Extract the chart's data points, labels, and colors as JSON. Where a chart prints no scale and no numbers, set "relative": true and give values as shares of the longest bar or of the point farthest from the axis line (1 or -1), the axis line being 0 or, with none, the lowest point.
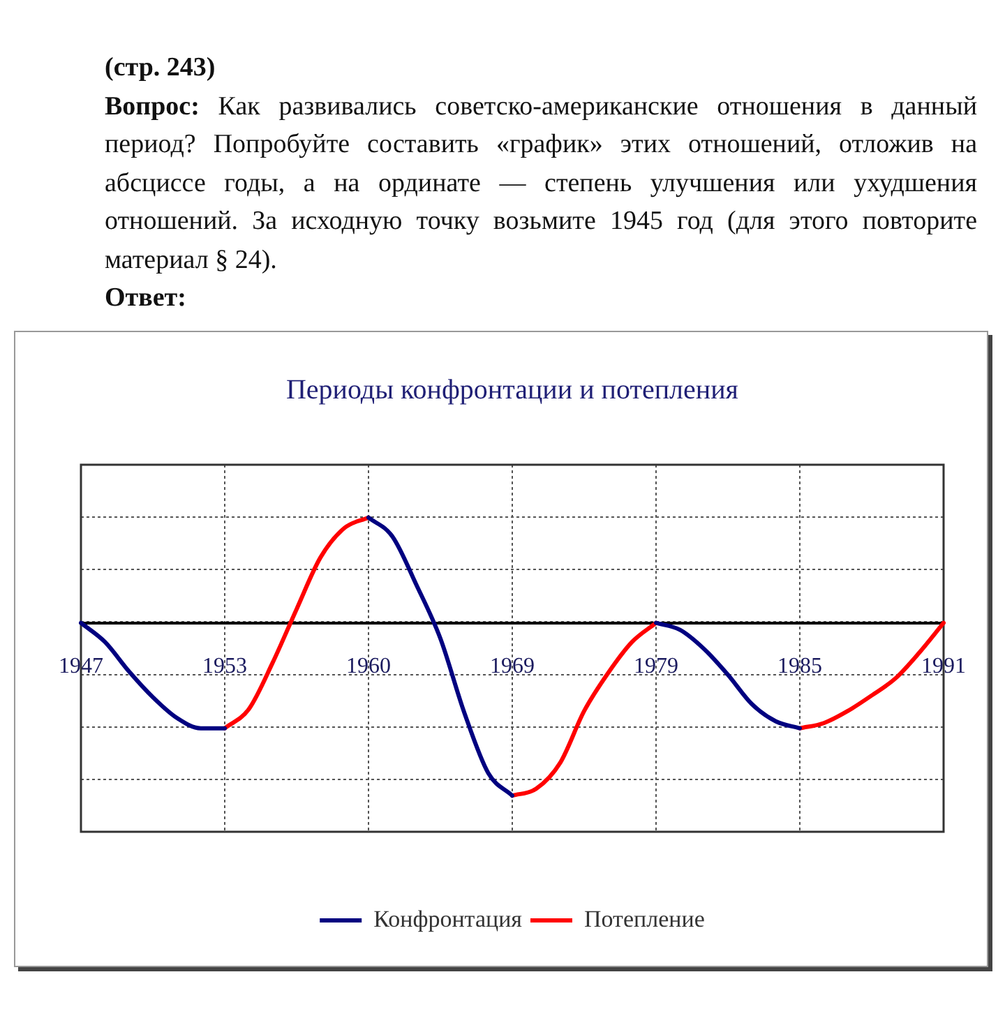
{
  "chart_data": {
    "type": "line",
    "title": "Периоды конфронтации и потепления",
    "annotations": [
      "(стр. 243)",
      "Вопрос:",
      "Как развивались советско-американские отношения в данный период? Попробуйте составить «график» этих отношений, отложив на абсциссе годы, а на ординате — степень улучшения или ухудшения отношений. За исходную точку возьмите 1945 год (для этого повторите материал § 24).",
      "Ответ:"
    ],
    "categories": [
      "1947",
      null,
      null,
      null,
      null,
      null,
      "1953",
      null,
      null,
      null,
      null,
      null,
      "1960",
      null,
      null,
      null,
      null,
      null,
      "1969",
      null,
      null,
      null,
      null,
      null,
      "1979",
      null,
      null,
      null,
      null,
      null,
      "1985",
      null,
      null,
      null,
      null,
      null,
      "1991"
    ],
    "relative": true,
    "series": [
      {
        "name": "Конфронтация",
        "color": "#000080",
        "values": [
          0,
          -0.11,
          -0.28,
          -0.43,
          -0.55,
          -0.61,
          -0.61,
          null,
          null,
          null,
          null,
          null,
          0.61,
          0.5,
          0.22,
          -0.09,
          -0.52,
          -0.87,
          -1,
          null,
          null,
          null,
          null,
          null,
          0,
          -0.04,
          -0.15,
          -0.3,
          -0.47,
          -0.57,
          -0.61,
          null,
          null,
          null,
          null,
          null,
          null
        ]
      },
      {
        "name": "Потепление",
        "color": "#ff0000",
        "values": [
          null,
          null,
          null,
          null,
          null,
          null,
          -0.61,
          -0.5,
          -0.23,
          0.08,
          0.38,
          0.55,
          0.61,
          null,
          null,
          null,
          null,
          null,
          -1,
          -0.96,
          -0.81,
          -0.51,
          -0.29,
          -0.11,
          0,
          null,
          null,
          null,
          null,
          null,
          -0.61,
          -0.58,
          -0.51,
          -0.42,
          -0.32,
          -0.17,
          0
        ]
      }
    ],
    "grid": true,
    "legend": "bottom"
  }
}
